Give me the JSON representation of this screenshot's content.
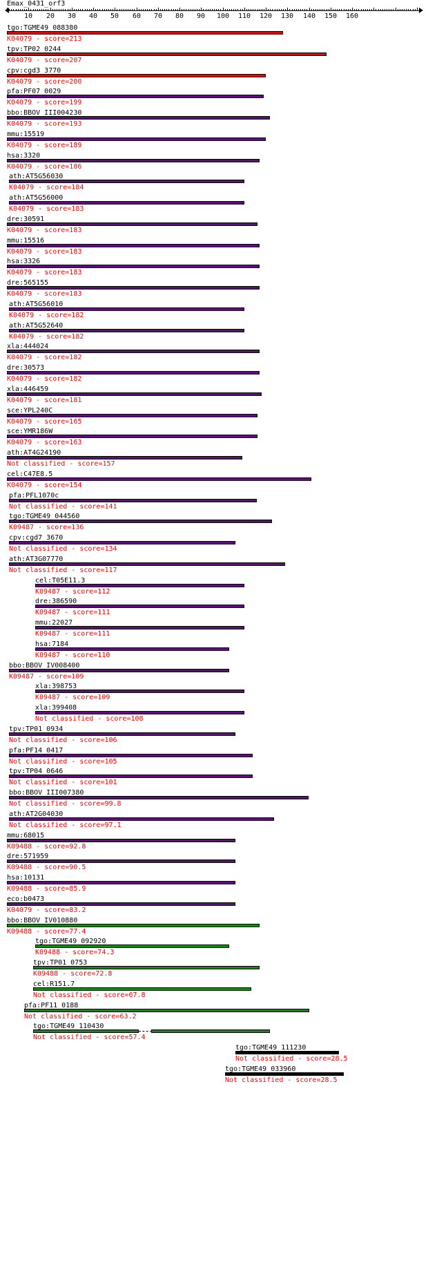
{
  "title": "Emax_0431_orf3",
  "ruler": {
    "max": 160,
    "ticks": [
      "10",
      "20",
      "30",
      "40",
      "50",
      "60",
      "70",
      "80",
      "90",
      "100",
      "110",
      "120",
      "130",
      "140",
      "150",
      "160"
    ]
  },
  "colors": {
    "red": "#d01010",
    "purple": "#5c1078",
    "green": "#138a13",
    "black": "#000000",
    "score": "#ff0000"
  },
  "hits": [
    {
      "name": "tgo:TGME49_088380",
      "score_text": "K04079 - score=213",
      "start": 1,
      "end": 128,
      "color": "red"
    },
    {
      "name": "tpv:TP02_0244",
      "score_text": "K04079 - score=207",
      "start": 1,
      "end": 148,
      "color": "red"
    },
    {
      "name": "cpv:cgd3_3770",
      "score_text": "K04079 - score=200",
      "start": 1,
      "end": 120,
      "color": "red"
    },
    {
      "name": "pfa:PF07_0029",
      "score_text": "K04079 - score=199",
      "start": 1,
      "end": 119,
      "color": "purple"
    },
    {
      "name": "bbo:BBOV_III004230",
      "score_text": "K04079 - score=193",
      "start": 1,
      "end": 122,
      "color": "purple"
    },
    {
      "name": "mmu:15519",
      "score_text": "K04079 - score=189",
      "start": 1,
      "end": 120,
      "color": "purple"
    },
    {
      "name": "hsa:3320",
      "score_text": "K04079 - score=186",
      "start": 1,
      "end": 117,
      "color": "purple"
    },
    {
      "name": "ath:AT5G56030",
      "score_text": "K04079 - score=184",
      "start": 2,
      "end": 110,
      "color": "purple"
    },
    {
      "name": "ath:AT5G56000",
      "score_text": "K04079 - score=183",
      "start": 2,
      "end": 110,
      "color": "purple"
    },
    {
      "name": "dre:30591",
      "score_text": "K04079 - score=183",
      "start": 1,
      "end": 116,
      "color": "purple"
    },
    {
      "name": "mmu:15516",
      "score_text": "K04079 - score=183",
      "start": 1,
      "end": 117,
      "color": "purple"
    },
    {
      "name": "hsa:3326",
      "score_text": "K04079 - score=183",
      "start": 1,
      "end": 117,
      "color": "purple"
    },
    {
      "name": "dre:565155",
      "score_text": "K04079 - score=183",
      "start": 1,
      "end": 117,
      "color": "purple"
    },
    {
      "name": "ath:AT5G56010",
      "score_text": "K04079 - score=182",
      "start": 2,
      "end": 110,
      "color": "purple"
    },
    {
      "name": "ath:AT5G52640",
      "score_text": "K04079 - score=182",
      "start": 2,
      "end": 110,
      "color": "purple"
    },
    {
      "name": "xla:444024",
      "score_text": "K04079 - score=182",
      "start": 1,
      "end": 117,
      "color": "purple"
    },
    {
      "name": "dre:30573",
      "score_text": "K04079 - score=182",
      "start": 1,
      "end": 117,
      "color": "purple"
    },
    {
      "name": "xla:446459",
      "score_text": "K04079 - score=181",
      "start": 1,
      "end": 118,
      "color": "purple"
    },
    {
      "name": "sce:YPL240C",
      "score_text": "K04079 - score=165",
      "start": 1,
      "end": 116,
      "color": "purple"
    },
    {
      "name": "sce:YMR186W",
      "score_text": "K04079 - score=163",
      "start": 1,
      "end": 116,
      "color": "purple"
    },
    {
      "name": "ath:AT4G24190",
      "score_text": "Not classified - score=157",
      "start": 1,
      "end": 109,
      "color": "purple"
    },
    {
      "name": "cel:C47E8.5",
      "score_text": "K04079 - score=154",
      "start": 1,
      "end": 141,
      "color": "purple"
    },
    {
      "name": "pfa:PFL1070c",
      "score_text": "Not classified - score=141",
      "start": 2,
      "end": 116,
      "color": "purple"
    },
    {
      "name": "tgo:TGME49_044560",
      "score_text": "K09487 - score=136",
      "start": 2,
      "end": 123,
      "color": "purple"
    },
    {
      "name": "cpv:cgd7_3670",
      "score_text": "Not classified - score=134",
      "start": 2,
      "end": 106,
      "color": "purple"
    },
    {
      "name": "ath:AT3G07770",
      "score_text": "Not classified - score=117",
      "start": 2,
      "end": 129,
      "color": "purple"
    },
    {
      "name": "cel:T05E11.3",
      "score_text": "K09487 - score=112",
      "start": 14,
      "end": 110,
      "color": "purple"
    },
    {
      "name": "dre:386590",
      "score_text": "K09487 - score=111",
      "start": 14,
      "end": 110,
      "color": "purple"
    },
    {
      "name": "mmu:22027",
      "score_text": "K09487 - score=111",
      "start": 14,
      "end": 110,
      "color": "purple"
    },
    {
      "name": "hsa:7184",
      "score_text": "K09487 - score=110",
      "start": 14,
      "end": 103,
      "color": "purple"
    },
    {
      "name": "bbo:BBOV_IV008400",
      "score_text": "K09487 - score=109",
      "start": 2,
      "end": 103,
      "color": "purple"
    },
    {
      "name": "xla:398753",
      "score_text": "K09487 - score=109",
      "start": 14,
      "end": 110,
      "color": "purple"
    },
    {
      "name": "xla:399408",
      "score_text": "Not classified - score=108",
      "start": 14,
      "end": 110,
      "color": "purple"
    },
    {
      "name": "tpv:TP01_0934",
      "score_text": "Not classified - score=106",
      "start": 2,
      "end": 106,
      "color": "purple"
    },
    {
      "name": "pfa:PF14_0417",
      "score_text": "Not classified - score=105",
      "start": 2,
      "end": 114,
      "color": "purple"
    },
    {
      "name": "tpv:TP04_0646",
      "score_text": "Not classified - score=101",
      "start": 2,
      "end": 114,
      "color": "purple"
    },
    {
      "name": "bbo:BBOV_III007380",
      "score_text": "Not classified - score=99.8",
      "start": 2,
      "end": 140,
      "color": "purple"
    },
    {
      "name": "ath:AT2G04030",
      "score_text": "Not classified - score=97.1",
      "start": 2,
      "end": 124,
      "color": "purple"
    },
    {
      "name": "mmu:68015",
      "score_text": "K09488 - score=92.8",
      "start": 1,
      "end": 106,
      "color": "purple"
    },
    {
      "name": "dre:571959",
      "score_text": "K09488 - score=90.5",
      "start": 1,
      "end": 106,
      "color": "purple"
    },
    {
      "name": "hsa:10131",
      "score_text": "K09488 - score=85.9",
      "start": 1,
      "end": 106,
      "color": "purple"
    },
    {
      "name": "eco:b0473",
      "score_text": "K04079 - score=83.2",
      "start": 1,
      "end": 106,
      "color": "purple"
    },
    {
      "name": "bbo:BBOV_IV010880",
      "score_text": "K09488 - score=77.4",
      "start": 1,
      "end": 117,
      "color": "green"
    },
    {
      "name": "tgo:TGME49_092920",
      "score_text": "K09488 - score=74.3",
      "start": 14,
      "end": 103,
      "color": "green"
    },
    {
      "name": "tpv:TP01_0753",
      "score_text": "K09488 - score=72.8",
      "start": 13,
      "end": 117,
      "color": "green"
    },
    {
      "name": "cel:R151.7",
      "score_text": "Not classified - score=67.8",
      "start": 13,
      "end": 113,
      "color": "green"
    },
    {
      "name": "pfa:PF11_0188",
      "score_text": "Not classified - score=63.2",
      "start": 9,
      "end": 140,
      "color": "green"
    },
    {
      "name": "tgo:TGME49_110430",
      "score_text": "Not classified - score=57.4",
      "start": 13,
      "end": 122,
      "color": "green",
      "gap": [
        61,
        67
      ]
    },
    {
      "name": "tgo:TGME49_111230",
      "score_text": "Not classified - score=28.5",
      "start": 107,
      "end": 154,
      "color": "black"
    },
    {
      "name": "tgo:TGME49_033960",
      "score_text": "Not classified - score=28.5",
      "start": 102,
      "end": 156,
      "color": "black"
    }
  ]
}
